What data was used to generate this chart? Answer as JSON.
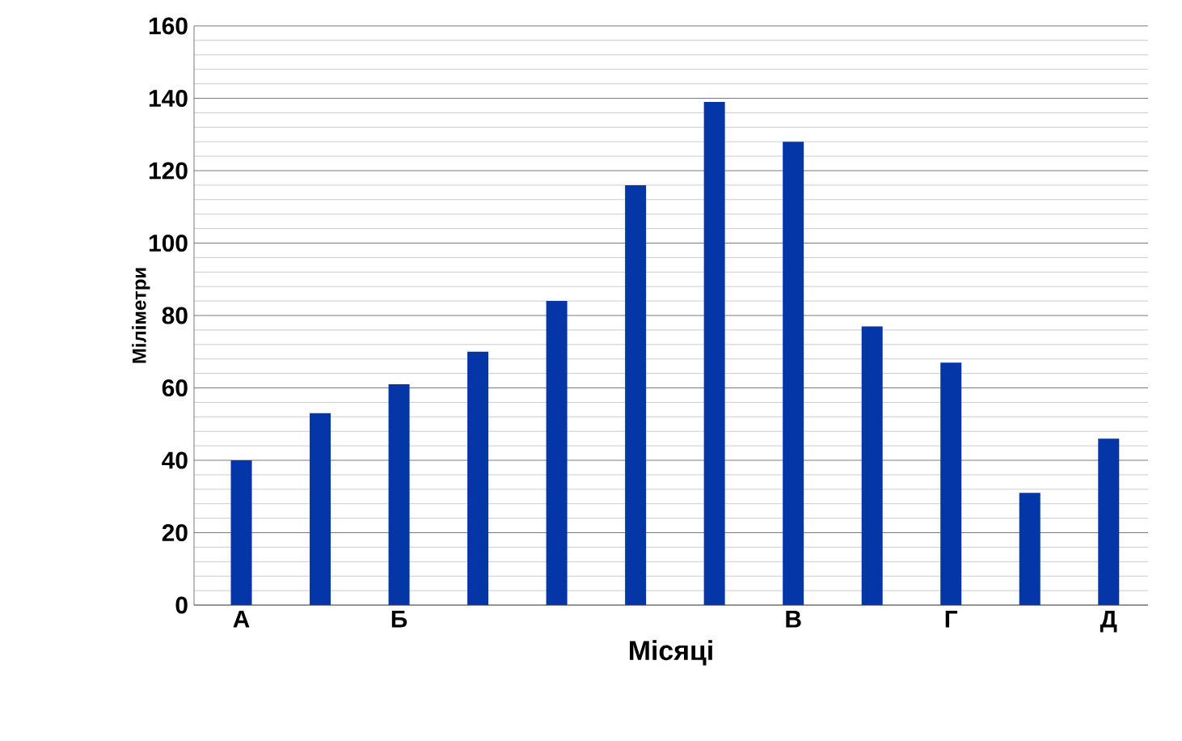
{
  "chart_data": {
    "type": "bar",
    "xlabel": "Місяці",
    "ylabel": "Міліметри",
    "categories": [
      "А",
      null,
      "Б",
      null,
      null,
      null,
      null,
      "В",
      null,
      "Г",
      null,
      "Д"
    ],
    "values": [
      40,
      53,
      61,
      70,
      84,
      116,
      139,
      128,
      77,
      67,
      31,
      46
    ],
    "color": "#0536a8",
    "ylim": [
      0,
      160
    ],
    "yticks": [
      0,
      20,
      40,
      60,
      80,
      100,
      120,
      140,
      160
    ],
    "grid": "y"
  }
}
